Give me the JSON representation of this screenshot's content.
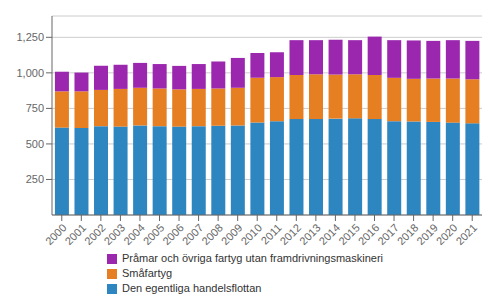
{
  "chart_data": {
    "type": "bar",
    "stacked": true,
    "categories": [
      "2000",
      "2001",
      "2002",
      "2003",
      "2004",
      "2005",
      "2006",
      "2007",
      "2008",
      "2009",
      "2010",
      "2011",
      "2012",
      "2013",
      "2014",
      "2015",
      "2016",
      "2017",
      "2018",
      "2019",
      "2020",
      "2021"
    ],
    "series": [
      {
        "name": "Den egentliga handelsflottan",
        "color": "#2e86c1",
        "values": [
          615,
          612,
          625,
          622,
          630,
          625,
          622,
          625,
          628,
          630,
          650,
          660,
          675,
          675,
          678,
          680,
          675,
          660,
          658,
          655,
          650,
          645
        ]
      },
      {
        "name": "Småfartyg",
        "color": "#e67e22",
        "values": [
          255,
          258,
          255,
          265,
          265,
          265,
          262,
          262,
          262,
          265,
          315,
          310,
          310,
          315,
          310,
          310,
          310,
          305,
          300,
          305,
          310,
          310
        ]
      },
      {
        "name": "Pråmar och övriga fartyg utan framdrivningsmaskineri",
        "color": "#9b27af",
        "values": [
          138,
          132,
          170,
          170,
          175,
          172,
          165,
          175,
          190,
          210,
          175,
          175,
          245,
          240,
          245,
          240,
          270,
          265,
          270,
          265,
          270,
          270
        ]
      }
    ],
    "ylim": [
      0,
      1400
    ],
    "yticks": [
      250,
      500,
      {
        "value": 750,
        "label": "750"
      },
      {
        "value": 1000,
        "label": "1,000"
      },
      {
        "value": 1250,
        "label": "1,250"
      }
    ],
    "grid": true,
    "legend": "bottom"
  }
}
